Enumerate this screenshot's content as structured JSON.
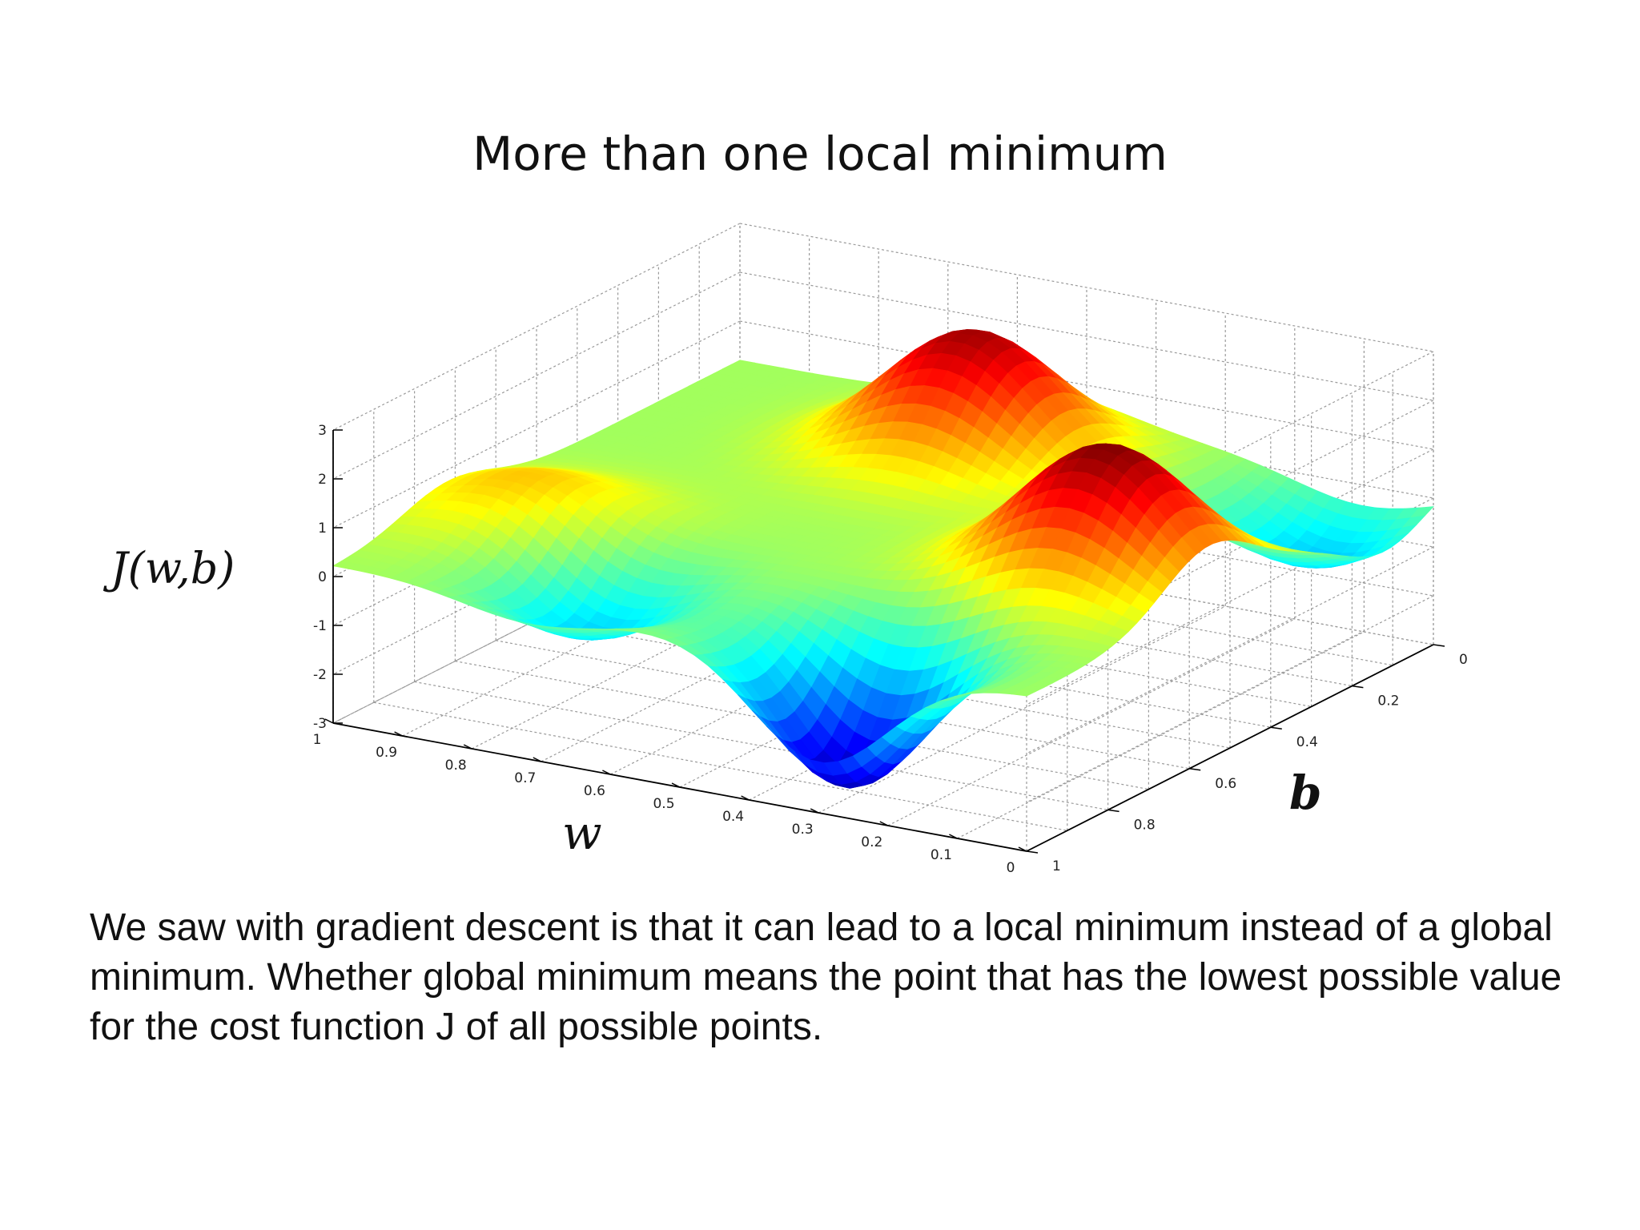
{
  "slide": {
    "title": "More than one local minimum",
    "caption": "We saw with gradient descent is that it can lead to a local minimum instead of a global minimum. Whether global minimum means the point that has the lowest possible value for the cost function J of all possible points."
  },
  "chart_data": {
    "type": "surface",
    "title": "More than one local minimum",
    "xlabel": "w",
    "ylabel": "b",
    "zlabel": "J(w,b)",
    "x_ticks": [
      "1",
      "0.9",
      "0.8",
      "0.7",
      "0.6",
      "0.5",
      "0.4",
      "0.3",
      "0.2",
      "0.1",
      "0"
    ],
    "y_ticks": [
      "0",
      "0.2",
      "0.4",
      "0.6",
      "0.8",
      "1"
    ],
    "z_ticks": [
      "3",
      "2",
      "1",
      "0",
      "-1",
      "-2",
      "-3"
    ],
    "xlim": [
      0,
      1
    ],
    "ylim": [
      0,
      1
    ],
    "zlim": [
      -3,
      3
    ],
    "grid": true,
    "colormap": "jet",
    "features": [
      {
        "kind": "peak",
        "w": 0.55,
        "b": 0.2,
        "J": 2.6
      },
      {
        "kind": "peak",
        "w": 0.15,
        "b": 0.55,
        "J": 2.8
      },
      {
        "kind": "peak",
        "w": 0.88,
        "b": 0.72,
        "J": 1.0
      },
      {
        "kind": "valley",
        "w": 0.3,
        "b": 0.92,
        "J": -3.0
      },
      {
        "kind": "valley",
        "w": 0.72,
        "b": 0.85,
        "J": -1.4
      },
      {
        "kind": "valley",
        "w": 0.1,
        "b": 0.12,
        "J": -1.3
      }
    ]
  }
}
